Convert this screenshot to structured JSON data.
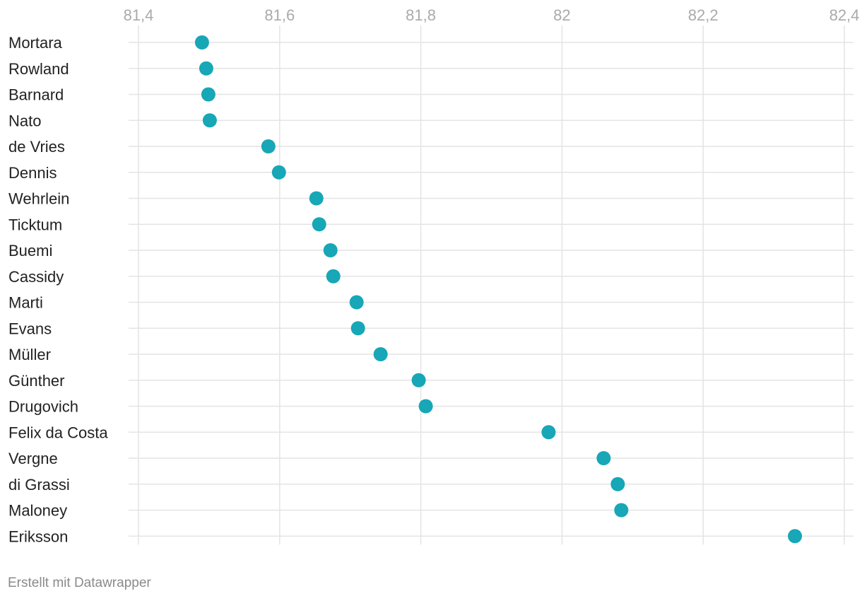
{
  "chart_data": {
    "type": "scatter",
    "orientation": "dot-plot-horizontal",
    "categories": [
      "Mortara",
      "Rowland",
      "Barnard",
      "Nato",
      "de Vries",
      "Dennis",
      "Wehrlein",
      "Ticktum",
      "Buemi",
      "Cassidy",
      "Marti",
      "Evans",
      "Müller",
      "Günther",
      "Drugovich",
      "Felix da Costa",
      "Vergne",
      "di Grassi",
      "Maloney",
      "Eriksson"
    ],
    "values": [
      81.49,
      81.496,
      81.499,
      81.501,
      81.584,
      81.599,
      81.652,
      81.656,
      81.672,
      81.676,
      81.709,
      81.711,
      81.743,
      81.797,
      81.807,
      81.981,
      82.059,
      82.079,
      82.084,
      82.33
    ],
    "title": "",
    "xlabel": "",
    "ylabel": "",
    "xlim": [
      81.4,
      82.4
    ],
    "xticks": [
      81.4,
      81.6,
      81.8,
      82.0,
      82.2,
      82.4
    ],
    "xtick_labels": [
      "81,4",
      "81,6",
      "81,8",
      "82",
      "82,2",
      "82,4"
    ],
    "x_axis_position": "top",
    "grid": true,
    "colors": {
      "dot": "#17a7b7",
      "grid": "#e4e4e4",
      "tick_label": "#aaaaaa",
      "row_label": "#222222"
    }
  },
  "footer": {
    "credit": "Erstellt mit Datawrapper"
  }
}
